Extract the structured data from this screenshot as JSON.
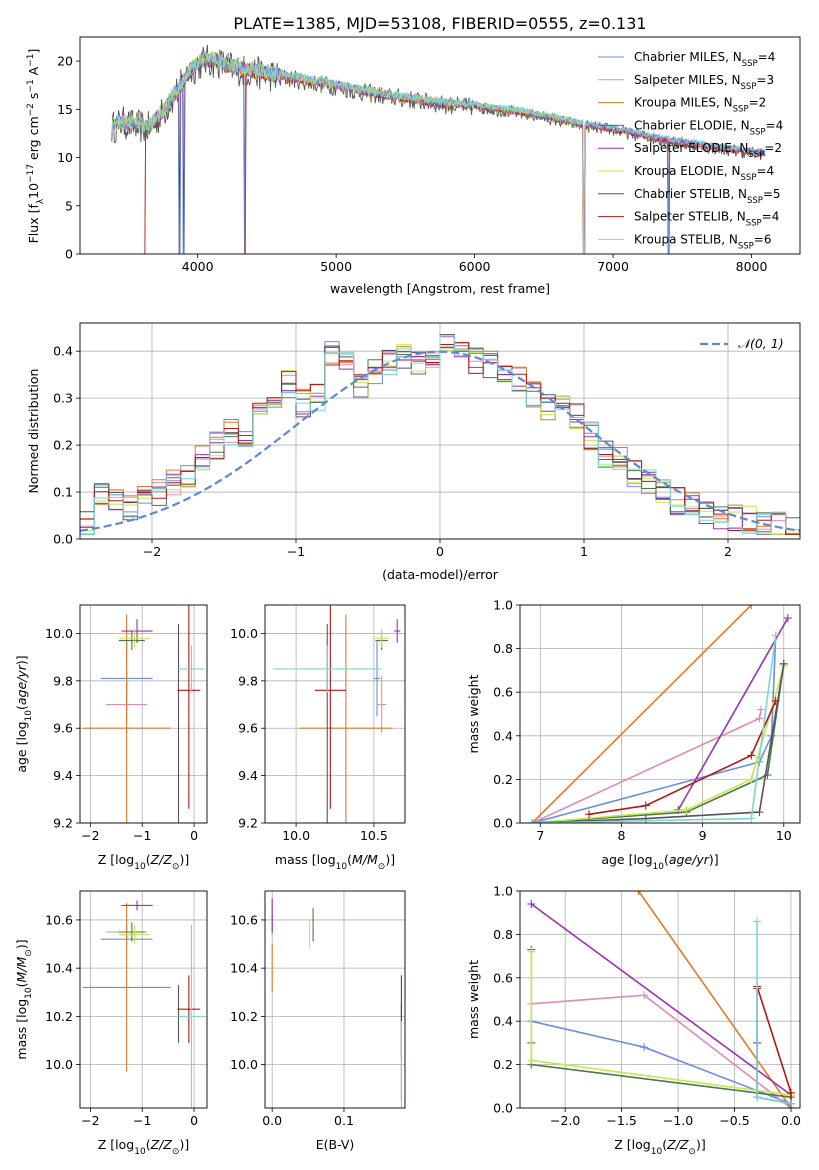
{
  "figure_title": "PLATE=1385, MJD=53108, FIBERID=0555, z=0.131",
  "colors": {
    "chabrier_miles": "#6a8ee0",
    "salpeter_miles": "#e08ab8",
    "kroupa_miles": "#e07a28",
    "chabrier_elodie": "#4a7a4a",
    "salpeter_elodie": "#9932b0",
    "kroupa_elodie": "#c6e84a",
    "chabrier_stelib": "#555555",
    "salpeter_stelib": "#b01818",
    "kroupa_stelib": "#7ad6d6",
    "gaussian": "#5a8ad6",
    "grid": "#b0b0b0"
  },
  "legend": [
    {
      "key": "chabrier_miles",
      "text": "Chabrier MILES, N",
      "sub": "SSP",
      "tail": "=4"
    },
    {
      "key": "salpeter_miles",
      "text": "Salpeter MILES, N",
      "sub": "SSP",
      "tail": "=3"
    },
    {
      "key": "kroupa_miles",
      "text": "Kroupa MILES, N",
      "sub": "SSP",
      "tail": "=2"
    },
    {
      "key": "chabrier_elodie",
      "text": "Chabrier ELODIE, N",
      "sub": "SSP",
      "tail": "=4"
    },
    {
      "key": "salpeter_elodie",
      "text": "Salpeter ELODIE, N",
      "sub": "SSP",
      "tail": "=2"
    },
    {
      "key": "kroupa_elodie",
      "text": "Kroupa ELODIE, N",
      "sub": "SSP",
      "tail": "=4"
    },
    {
      "key": "chabrier_stelib",
      "text": "Chabrier STELIB, N",
      "sub": "SSP",
      "tail": "=5"
    },
    {
      "key": "salpeter_stelib",
      "text": "Salpeter STELIB, N",
      "sub": "SSP",
      "tail": "=4"
    },
    {
      "key": "kroupa_stelib",
      "text": "Kroupa STELIB, N",
      "sub": "SSP",
      "tail": "=6"
    }
  ],
  "chart_data": [
    {
      "id": "spectrum",
      "type": "line",
      "xlabel": "wavelength [Angstrom, rest frame]",
      "ylabel": "Flux [fλ10⁻¹⁷ erg cm⁻² s⁻¹ A⁻¹]",
      "xlim": [
        3150,
        8350
      ],
      "ylim": [
        0,
        22.5
      ],
      "xticks": [
        4000,
        5000,
        6000,
        7000,
        8000
      ],
      "yticks": [
        0,
        5,
        10,
        15,
        20
      ],
      "continuum": {
        "x": [
          3380,
          3450,
          3550,
          3650,
          3750,
          3850,
          3950,
          4050,
          4150,
          4250,
          4400,
          4600,
          4800,
          5000,
          5200,
          5400,
          5600,
          5800,
          6000,
          6200,
          6400,
          6600,
          6800,
          7000,
          7200,
          7400,
          7600,
          7800,
          8000,
          8100
        ],
        "y": [
          13.2,
          13.8,
          13.4,
          13.2,
          14.8,
          17.0,
          19.2,
          20.2,
          20.0,
          19.4,
          19.0,
          18.5,
          18.0,
          17.5,
          16.9,
          16.4,
          16.0,
          15.6,
          15.4,
          15.0,
          14.6,
          14.0,
          13.4,
          13.0,
          12.4,
          11.8,
          11.4,
          11.0,
          10.6,
          10.5
        ]
      },
      "dips_to_zero_x": [
        3870,
        3900,
        4340,
        6790,
        7400
      ]
    },
    {
      "id": "residuals",
      "type": "histogram",
      "xlabel": "(data-model)/error",
      "ylabel": "Normed distribution",
      "xlim": [
        -2.5,
        2.5
      ],
      "ylim": [
        0,
        0.46
      ],
      "xticks": [
        -2,
        -1,
        0,
        1,
        2
      ],
      "yticks": [
        0,
        0.1,
        0.2,
        0.3,
        0.4
      ],
      "gaussian_label": "𝒩(0, 1)",
      "bin_edges": [
        -2.5,
        -2.4,
        -2.3,
        -2.2,
        -2.1,
        -2.0,
        -1.9,
        -1.8,
        -1.7,
        -1.6,
        -1.5,
        -1.4,
        -1.3,
        -1.2,
        -1.1,
        -1.0,
        -0.9,
        -0.8,
        -0.7,
        -0.6,
        -0.5,
        -0.4,
        -0.3,
        -0.2,
        -0.1,
        0.0,
        0.1,
        0.2,
        0.3,
        0.4,
        0.5,
        0.6,
        0.7,
        0.8,
        0.9,
        1.0,
        1.1,
        1.2,
        1.3,
        1.4,
        1.5,
        1.6,
        1.7,
        1.8,
        1.9,
        2.0,
        2.1,
        2.2,
        2.3,
        2.4,
        2.5
      ],
      "base_values": [
        0.03,
        0.1,
        0.08,
        0.07,
        0.09,
        0.1,
        0.12,
        0.14,
        0.17,
        0.2,
        0.23,
        0.22,
        0.28,
        0.31,
        0.33,
        0.29,
        0.3,
        0.4,
        0.37,
        0.33,
        0.36,
        0.38,
        0.39,
        0.37,
        0.38,
        0.42,
        0.4,
        0.38,
        0.37,
        0.36,
        0.34,
        0.31,
        0.28,
        0.3,
        0.26,
        0.22,
        0.18,
        0.17,
        0.14,
        0.12,
        0.1,
        0.08,
        0.07,
        0.06,
        0.05,
        0.045,
        0.04,
        0.035,
        0.03,
        0.028
      ]
    },
    {
      "id": "age_vs_Z",
      "type": "errorbar",
      "xlabel": "Z [log10(Z/Z⊙)]",
      "ylabel": "age  [log10(age/yr)]",
      "xlim": [
        -2.2,
        0.25
      ],
      "ylim": [
        9.2,
        10.12
      ],
      "xticks": [
        -2,
        -1,
        0
      ],
      "yticks": [
        9.2,
        9.4,
        9.6,
        9.8,
        10.0
      ],
      "points": [
        {
          "key": "chabrier_miles",
          "x": -1.3,
          "xerr": 0.5,
          "y": 9.81,
          "yerr": 0.16
        },
        {
          "key": "salpeter_miles",
          "x": -1.3,
          "xerr": 0.4,
          "y": 9.7,
          "yerr": 0.12
        },
        {
          "key": "kroupa_miles",
          "x": -1.3,
          "xerr": 0.85,
          "y": 9.6,
          "yerr": 0.48
        },
        {
          "key": "chabrier_elodie",
          "x": -1.2,
          "xerr": 0.25,
          "y": 9.97,
          "yerr": 0.04
        },
        {
          "key": "salpeter_elodie",
          "x": -1.1,
          "xerr": 0.3,
          "y": 10.01,
          "yerr": 0.05
        },
        {
          "key": "kroupa_elodie",
          "x": -1.15,
          "xerr": 0.3,
          "y": 9.98,
          "yerr": 0.04
        },
        {
          "key": "chabrier_stelib",
          "x": -0.3,
          "xerr": 0.0,
          "y": 9.6,
          "yerr": 0.44
        },
        {
          "key": "salpeter_stelib",
          "x": -0.1,
          "xerr": 0.22,
          "y": 9.76,
          "yerr": 0.5
        },
        {
          "key": "kroupa_stelib",
          "x": -0.05,
          "xerr": 0.25,
          "y": 9.85,
          "yerr": 0.1
        }
      ]
    },
    {
      "id": "age_vs_mass",
      "type": "errorbar",
      "xlabel": "mass [log10(M/M⊙)]",
      "ylabel": "",
      "xlim": [
        9.8,
        10.7
      ],
      "ylim": [
        9.2,
        10.12
      ],
      "xticks": [
        10.0,
        10.5
      ],
      "yticks": [
        9.2,
        9.4,
        9.6,
        9.8,
        10.0
      ],
      "points": [
        {
          "key": "chabrier_miles",
          "x": 10.52,
          "xerr": 0.02,
          "y": 9.81,
          "yerr": 0.16
        },
        {
          "key": "salpeter_miles",
          "x": 10.55,
          "xerr": 0.03,
          "y": 9.7,
          "yerr": 0.12
        },
        {
          "key": "kroupa_miles",
          "x": 10.32,
          "xerr": 0.3,
          "y": 9.6,
          "yerr": 0.48
        },
        {
          "key": "chabrier_elodie",
          "x": 10.55,
          "xerr": 0.04,
          "y": 9.97,
          "yerr": 0.04
        },
        {
          "key": "salpeter_elodie",
          "x": 10.65,
          "xerr": 0.02,
          "y": 10.01,
          "yerr": 0.05
        },
        {
          "key": "kroupa_elodie",
          "x": 10.55,
          "xerr": 0.05,
          "y": 9.98,
          "yerr": 0.04
        },
        {
          "key": "chabrier_stelib",
          "x": 10.2,
          "xerr": 0.0,
          "y": 9.6,
          "yerr": 0.44
        },
        {
          "key": "salpeter_stelib",
          "x": 10.22,
          "xerr": 0.1,
          "y": 9.76,
          "yerr": 0.5
        },
        {
          "key": "kroupa_stelib",
          "x": 10.2,
          "xerr": 0.35,
          "y": 9.85,
          "yerr": 0.1
        }
      ]
    },
    {
      "id": "massweight_vs_age",
      "type": "line",
      "xlabel": "age  [log10(age/yr)]",
      "ylabel": "mass weight",
      "xlim": [
        6.75,
        10.2
      ],
      "ylim": [
        0,
        1.0
      ],
      "xticks": [
        7,
        8,
        9,
        10
      ],
      "yticks": [
        0.0,
        0.2,
        0.4,
        0.6,
        0.8,
        1.0
      ],
      "series": [
        {
          "key": "chabrier_miles",
          "x": [
            6.9,
            9.7,
            9.85,
            9.9
          ],
          "y": [
            0.0,
            0.28,
            0.4,
            0.86
          ]
        },
        {
          "key": "salpeter_miles",
          "x": [
            6.9,
            9.7,
            9.72
          ],
          "y": [
            0.0,
            0.48,
            0.52
          ]
        },
        {
          "key": "kroupa_miles",
          "x": [
            6.9,
            9.6
          ],
          "y": [
            0.0,
            1.0
          ]
        },
        {
          "key": "chabrier_elodie",
          "x": [
            6.9,
            8.8,
            9.8,
            10.0
          ],
          "y": [
            0.0,
            0.05,
            0.22,
            0.73
          ]
        },
        {
          "key": "salpeter_elodie",
          "x": [
            8.7,
            10.05
          ],
          "y": [
            0.06,
            0.94
          ]
        },
        {
          "key": "kroupa_elodie",
          "x": [
            6.9,
            8.8,
            9.6,
            10.0
          ],
          "y": [
            0.0,
            0.06,
            0.2,
            0.72
          ]
        },
        {
          "key": "chabrier_stelib",
          "x": [
            6.9,
            8.3,
            9.7,
            10.0
          ],
          "y": [
            0.0,
            0.02,
            0.05,
            0.73
          ]
        },
        {
          "key": "salpeter_stelib",
          "x": [
            7.6,
            8.3,
            9.6,
            9.9
          ],
          "y": [
            0.04,
            0.08,
            0.31,
            0.56
          ]
        },
        {
          "key": "kroupa_stelib",
          "x": [
            6.9,
            9.6,
            9.7,
            9.9
          ],
          "y": [
            0.0,
            0.02,
            0.3,
            0.86
          ]
        }
      ]
    },
    {
      "id": "mass_vs_Z",
      "type": "errorbar",
      "xlabel": "Z [log10(Z/Z⊙)]",
      "ylabel": "mass [log10(M/M⊙)]",
      "xlim": [
        -2.2,
        0.25
      ],
      "ylim": [
        9.82,
        10.72
      ],
      "xticks": [
        -2,
        -1,
        0
      ],
      "yticks": [
        10.0,
        10.2,
        10.4,
        10.6
      ],
      "points": [
        {
          "key": "chabrier_miles",
          "x": -1.3,
          "xerr": 0.5,
          "y": 10.52,
          "yerr": 0.02
        },
        {
          "key": "salpeter_miles",
          "x": -1.3,
          "xerr": 0.4,
          "y": 10.55,
          "yerr": 0.03
        },
        {
          "key": "kroupa_miles",
          "x": -1.3,
          "xerr": 0.85,
          "y": 10.32,
          "yerr": 0.35
        },
        {
          "key": "chabrier_elodie",
          "x": -1.2,
          "xerr": 0.25,
          "y": 10.55,
          "yerr": 0.04
        },
        {
          "key": "salpeter_elodie",
          "x": -1.1,
          "xerr": 0.3,
          "y": 10.66,
          "yerr": 0.02
        },
        {
          "key": "kroupa_elodie",
          "x": -1.15,
          "xerr": 0.3,
          "y": 10.54,
          "yerr": 0.04
        },
        {
          "key": "chabrier_stelib",
          "x": -0.3,
          "xerr": 0.0,
          "y": 10.21,
          "yerr": 0.12
        },
        {
          "key": "salpeter_stelib",
          "x": -0.1,
          "xerr": 0.22,
          "y": 10.23,
          "yerr": 0.14
        },
        {
          "key": "kroupa_stelib",
          "x": -0.05,
          "xerr": 0.25,
          "y": 10.2,
          "yerr": 0.38
        }
      ]
    },
    {
      "id": "mass_vs_EBV",
      "type": "errorbar",
      "xlabel": "E(B-V)",
      "ylabel": "",
      "xlim": [
        -0.01,
        0.185
      ],
      "ylim": [
        9.82,
        10.72
      ],
      "xticks": [
        0.0,
        0.1
      ],
      "yticks": [
        10.0,
        10.2,
        10.4,
        10.6
      ],
      "points": [
        {
          "key": "chabrier_miles",
          "x": 0.0,
          "xerr": 0.0,
          "y": 10.58,
          "yerr": 0.04
        },
        {
          "key": "salpeter_miles",
          "x": 0.0,
          "xerr": 0.0,
          "y": 10.6,
          "yerr": 0.05
        },
        {
          "key": "kroupa_miles",
          "x": 0.0,
          "xerr": 0.0,
          "y": 10.4,
          "yerr": 0.1
        },
        {
          "key": "chabrier_elodie",
          "x": 0.057,
          "xerr": 0.0,
          "y": 10.58,
          "yerr": 0.07
        },
        {
          "key": "salpeter_elodie",
          "x": 0.0,
          "xerr": 0.0,
          "y": 10.62,
          "yerr": 0.07
        },
        {
          "key": "kroupa_elodie",
          "x": 0.052,
          "xerr": 0.0,
          "y": 10.54,
          "yerr": 0.06
        },
        {
          "key": "chabrier_stelib",
          "x": 0.18,
          "xerr": 0.0,
          "y": 10.05,
          "yerr": 0.2
        },
        {
          "key": "salpeter_stelib",
          "x": 0.18,
          "xerr": 0.0,
          "y": 10.2,
          "yerr": 0.17
        },
        {
          "key": "kroupa_stelib",
          "x": 0.18,
          "xerr": 0.0,
          "y": 10.0,
          "yerr": 0.18
        }
      ]
    },
    {
      "id": "massweight_vs_Z",
      "type": "line",
      "xlabel": "Z [log10(Z/Z⊙)]",
      "ylabel": "mass weight",
      "xlim": [
        -2.4,
        0.08
      ],
      "ylim": [
        0,
        1.0
      ],
      "xticks": [
        -2.0,
        -1.5,
        -1.0,
        -0.5,
        0.0
      ],
      "yticks": [
        0.0,
        0.2,
        0.4,
        0.6,
        0.8,
        1.0
      ],
      "series": [
        {
          "key": "chabrier_miles",
          "x": [
            -2.3,
            -1.3,
            0.0
          ],
          "y": [
            0.4,
            0.28,
            0.02
          ]
        },
        {
          "key": "salpeter_miles",
          "x": [
            -2.3,
            -1.3,
            0.0
          ],
          "y": [
            0.48,
            0.52,
            0.0
          ]
        },
        {
          "key": "kroupa_miles",
          "x": [
            -1.35,
            0.0
          ],
          "y": [
            1.0,
            0.0
          ]
        },
        {
          "key": "chabrier_elodie",
          "x": [
            -2.3,
            -2.3,
            -2.3,
            0.0
          ],
          "y": [
            0.73,
            0.3,
            0.2,
            0.05
          ]
        },
        {
          "key": "salpeter_elodie",
          "x": [
            -2.3,
            0.0
          ],
          "y": [
            0.94,
            0.06
          ]
        },
        {
          "key": "kroupa_elodie",
          "x": [
            -2.3,
            -2.3,
            0.0
          ],
          "y": [
            0.72,
            0.22,
            0.06
          ]
        },
        {
          "key": "chabrier_stelib",
          "x": [
            -0.3,
            -0.3,
            -0.3,
            0.0
          ],
          "y": [
            0.55,
            0.3,
            0.05,
            0.02
          ]
        },
        {
          "key": "salpeter_stelib",
          "x": [
            -0.3,
            0.0,
            0.0
          ],
          "y": [
            0.56,
            0.07,
            0.0
          ]
        },
        {
          "key": "kroupa_stelib",
          "x": [
            -0.3,
            -0.3,
            0.0
          ],
          "y": [
            0.86,
            0.05,
            0.02
          ]
        }
      ]
    }
  ]
}
